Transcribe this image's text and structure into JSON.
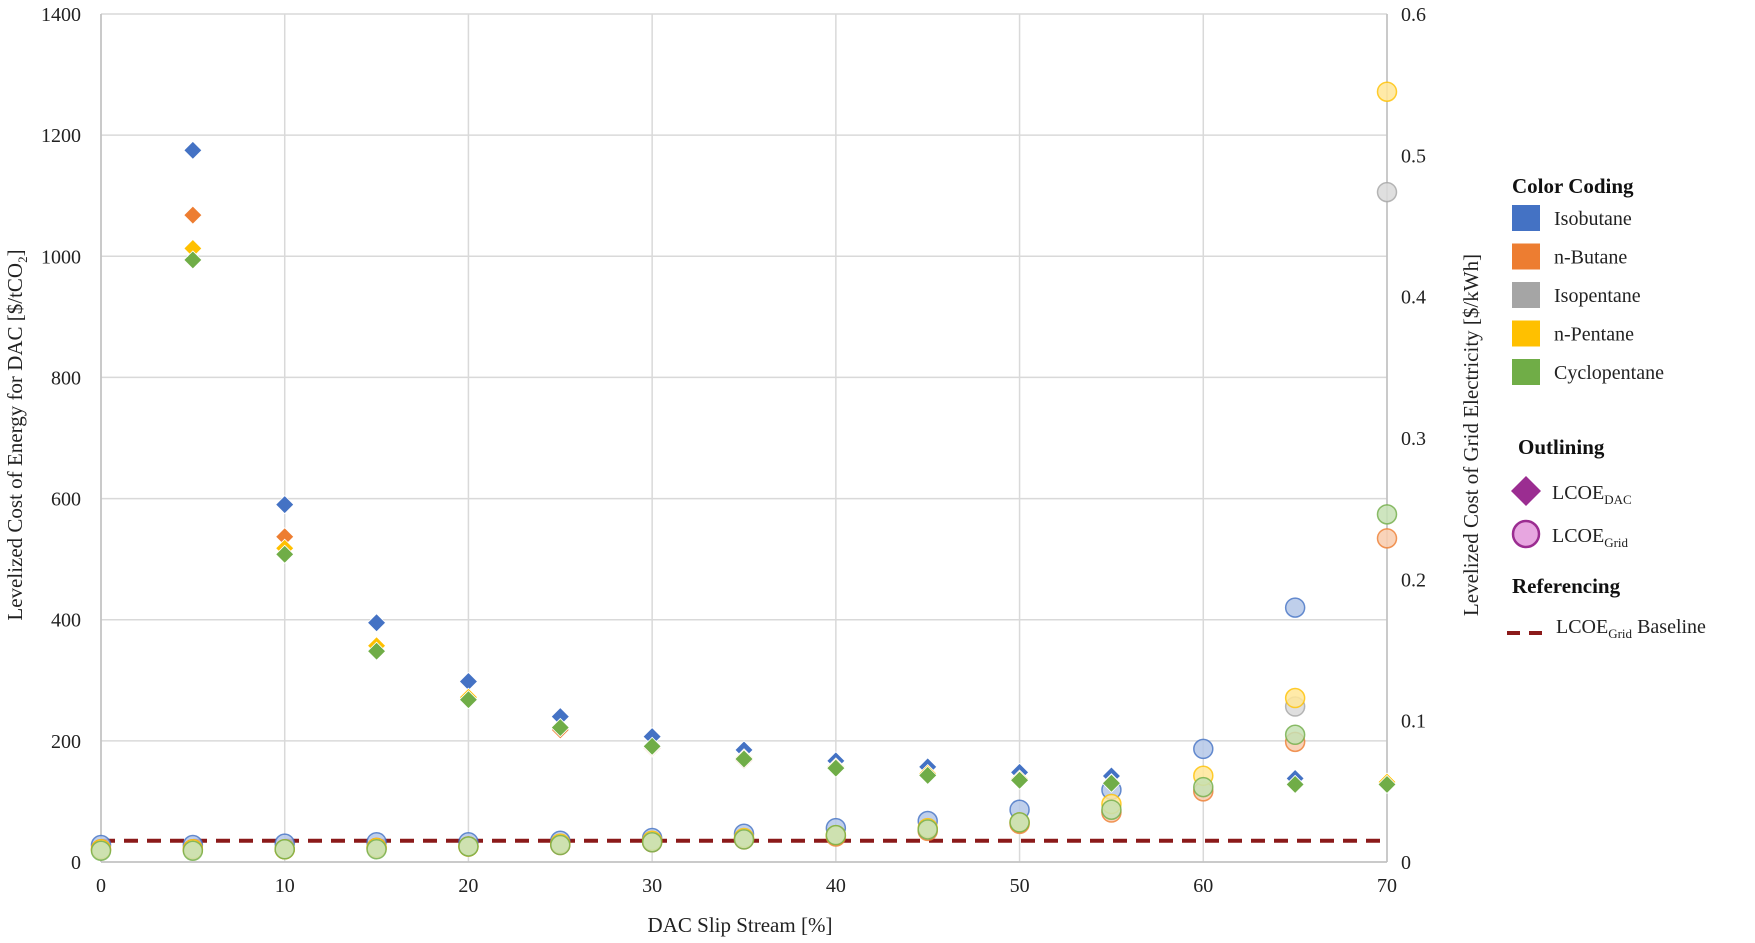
{
  "chart_data": {
    "type": "scatter",
    "xlabel": "DAC Slip Stream [%]",
    "ylabel": "Levelized Cost of Energy for DAC [$/tCO",
    "ylabel_sub": "2",
    "ylabel_end": "]",
    "y2label": "Levelized Cost of Grid Electricity [$/kWh]",
    "xlim": [
      0,
      70
    ],
    "ylim": [
      0,
      1400
    ],
    "y2lim": [
      0,
      0.6
    ],
    "x_ticks": [
      "0",
      "10",
      "20",
      "30",
      "40",
      "50",
      "60",
      "70"
    ],
    "y_ticks": [
      "0",
      "200",
      "400",
      "600",
      "800",
      "1000",
      "1200",
      "1400"
    ],
    "y2_ticks": [
      "0",
      "0.1",
      "0.2",
      "0.3",
      "0.4",
      "0.5",
      "0.6"
    ],
    "grid": true,
    "baseline": {
      "label": "LCOE",
      "label_sub": "Grid",
      "label_end": " Baseline",
      "value": 0.015,
      "color": "#8B1A1A"
    },
    "legend": {
      "color_heading": "Color Coding",
      "outline_heading": "Outlining",
      "reference_heading": "Referencing",
      "dac_label": "LCOE",
      "dac_sub": "DAC",
      "grid_label": "LCOE",
      "grid_sub": "Grid",
      "marker_color": "#9B2D91",
      "marker_fill_light": "#E7A6E0"
    },
    "fluids": [
      {
        "name": "Isobutane",
        "color": "#4472C4",
        "light": "#B4C7E7",
        "dac_x": [
          5,
          10,
          15,
          20,
          25,
          30,
          35,
          40,
          45,
          50,
          55,
          65
        ],
        "dac_y": [
          1175,
          590,
          395,
          298,
          240,
          207,
          185,
          167,
          157,
          148,
          142,
          138
        ],
        "grid_x": [
          0,
          5,
          10,
          15,
          20,
          25,
          30,
          35,
          40,
          45,
          50,
          55,
          60,
          65
        ],
        "grid_y": [
          0.012,
          0.012,
          0.013,
          0.014,
          0.014,
          0.015,
          0.017,
          0.02,
          0.024,
          0.029,
          0.037,
          0.051,
          0.08,
          0.18
        ]
      },
      {
        "name": "n-Butane",
        "color": "#ED7D31",
        "light": "#F8CBAD",
        "dac_x": [
          5,
          10,
          15,
          20,
          25,
          30,
          35,
          40,
          45
        ],
        "dac_y": [
          1068,
          537,
          357,
          272,
          218,
          188,
          168,
          156,
          145
        ],
        "grid_x": [
          0,
          5,
          10,
          15,
          20,
          25,
          30,
          35,
          40,
          45,
          50,
          55,
          60,
          65,
          70
        ],
        "grid_y": [
          0.009,
          0.009,
          0.009,
          0.01,
          0.011,
          0.012,
          0.014,
          0.016,
          0.018,
          0.022,
          0.027,
          0.035,
          0.05,
          0.085,
          0.229
        ]
      },
      {
        "name": "Isopentane",
        "color": "#A5A5A5",
        "light": "#D9D9D9",
        "dac_x": [],
        "dac_y": [],
        "grid_x": [
          65,
          70
        ],
        "grid_y": [
          0.11,
          0.474
        ]
      },
      {
        "name": "n-Pentane",
        "color": "#FFC000",
        "light": "#FFE699",
        "dac_x": [
          5,
          10,
          15,
          20,
          25,
          30,
          35,
          40,
          45,
          50,
          55,
          65,
          70
        ],
        "dac_y": [
          1013,
          518,
          357,
          272,
          222,
          190,
          172,
          157,
          146,
          137,
          131,
          128,
          132
        ],
        "grid_x": [
          0,
          5,
          10,
          15,
          20,
          25,
          30,
          35,
          40,
          45,
          50,
          55,
          60,
          65,
          70
        ],
        "grid_y": [
          0.009,
          0.009,
          0.009,
          0.01,
          0.011,
          0.013,
          0.015,
          0.017,
          0.019,
          0.024,
          0.028,
          0.041,
          0.061,
          0.116,
          0.545
        ]
      },
      {
        "name": "Cyclopentane",
        "color": "#70AD47",
        "light": "#C5E0B4",
        "dac_x": [
          5,
          10,
          15,
          20,
          25,
          30,
          35,
          40,
          45,
          50,
          55,
          65,
          70
        ],
        "dac_y": [
          994,
          508,
          348,
          268,
          222,
          191,
          170,
          155,
          143,
          135,
          130,
          128,
          128
        ],
        "grid_x": [
          0,
          5,
          10,
          15,
          20,
          25,
          30,
          35,
          40,
          45,
          50,
          55,
          60,
          65,
          70
        ],
        "grid_y": [
          0.008,
          0.008,
          0.009,
          0.009,
          0.011,
          0.012,
          0.014,
          0.016,
          0.019,
          0.023,
          0.028,
          0.037,
          0.053,
          0.09,
          0.246
        ]
      }
    ]
  }
}
